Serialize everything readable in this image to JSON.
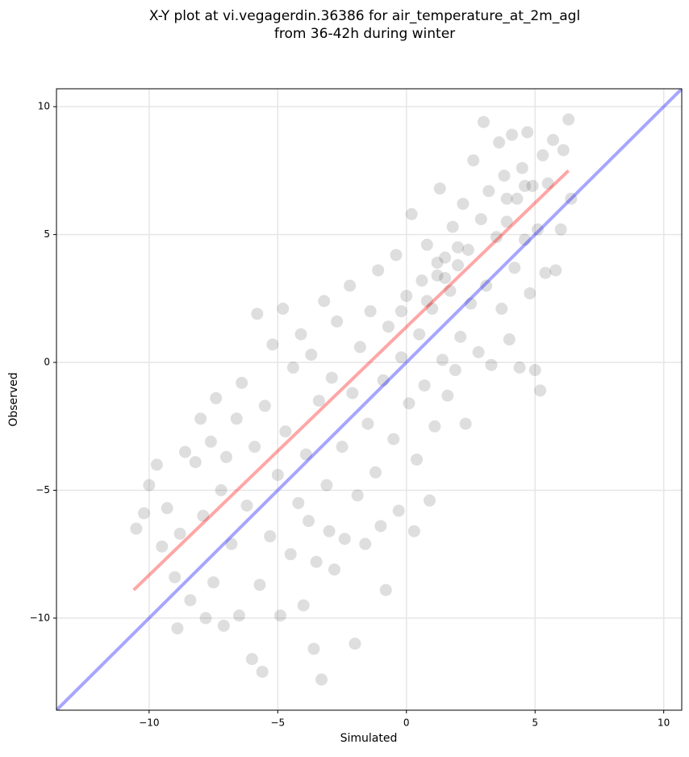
{
  "chart_data": {
    "type": "scatter",
    "title_lines": [
      "X-Y plot at vi.vegagerdin.36386 for air_temperature_at_2m_agl",
      "from 36-42h during winter"
    ],
    "xlabel": "Simulated",
    "ylabel": "Observed",
    "xlim": [
      -13.6,
      10.7
    ],
    "ylim": [
      -13.6,
      10.7
    ],
    "xticks": [
      {
        "value": -10,
        "label": "−10"
      },
      {
        "value": -5,
        "label": "−5"
      },
      0,
      5,
      10
    ],
    "yticks": [
      {
        "value": -10,
        "label": "−10"
      },
      {
        "value": -5,
        "label": "−5"
      },
      0,
      5,
      10
    ],
    "grid": true,
    "series": [
      {
        "color": "#000000",
        "alpha": 0.13,
        "x": [
          -10.5,
          -10.2,
          -10,
          -9.7,
          -9.5,
          -9.3,
          -9,
          -8.9,
          -8.8,
          -8.6,
          -8.4,
          -8.2,
          -8,
          -7.9,
          -7.8,
          -7.6,
          -7.5,
          -7.4,
          -7.2,
          -7.1,
          -7,
          -6.8,
          -6.6,
          -6.5,
          -6.4,
          -6.2,
          -6,
          -5.9,
          -5.8,
          -5.7,
          -5.6,
          -5.5,
          -5.3,
          -5.2,
          -5,
          -4.9,
          -4.8,
          -4.7,
          -4.5,
          -4.4,
          -4.2,
          -4.1,
          -4,
          -3.9,
          -3.8,
          -3.7,
          -3.6,
          -3.5,
          -3.4,
          -3.3,
          -3.2,
          -3.1,
          -3,
          -2.9,
          -2.8,
          -2.7,
          -2.5,
          -2.4,
          -2.2,
          -2.1,
          -2,
          -1.9,
          -1.8,
          -1.6,
          -1.5,
          -1.4,
          -1.2,
          -1.1,
          -1,
          -0.9,
          -0.8,
          -0.7,
          -0.5,
          -0.4,
          -0.3,
          -0.2,
          0,
          0.1,
          0.2,
          0.3,
          0.4,
          0.5,
          0.6,
          0.7,
          0.8,
          0.9,
          1,
          1.1,
          1.2,
          1.3,
          1.4,
          1.5,
          1.6,
          1.7,
          1.8,
          1.9,
          2,
          2.1,
          2.2,
          2.3,
          2.4,
          2.5,
          2.6,
          2.8,
          2.9,
          3,
          3.1,
          3.2,
          3.3,
          3.5,
          3.6,
          3.7,
          3.8,
          3.9,
          4,
          4.1,
          4.2,
          4.3,
          4.4,
          4.5,
          4.6,
          4.7,
          4.8,
          4.9,
          5,
          5.1,
          5.3,
          5.4,
          5.5,
          5.7,
          5.8,
          6,
          6.1,
          6.3,
          6.4,
          5.2,
          1.2,
          1.5,
          2.0,
          0.8,
          -0.2,
          4.6,
          3.9
        ],
        "y": [
          -6.5,
          -5.9,
          -4.8,
          -4,
          -7.2,
          -5.7,
          -8.4,
          -10.4,
          -6.7,
          -3.5,
          -9.3,
          -3.9,
          -2.2,
          -6,
          -10,
          -3.1,
          -8.6,
          -1.4,
          -5,
          -10.3,
          -3.7,
          -7.1,
          -2.2,
          -9.9,
          -0.8,
          -5.6,
          -11.6,
          -3.3,
          1.9,
          -8.7,
          -12.1,
          -1.7,
          -6.8,
          0.7,
          -4.4,
          -9.9,
          2.1,
          -2.7,
          -7.5,
          -0.2,
          -5.5,
          1.1,
          -9.5,
          -3.6,
          -6.2,
          0.3,
          -11.2,
          -7.8,
          -1.5,
          -12.4,
          2.4,
          -4.8,
          -6.6,
          -0.6,
          -8.1,
          1.6,
          -3.3,
          -6.9,
          3,
          -1.2,
          -11,
          -5.2,
          0.6,
          -7.1,
          -2.4,
          2,
          -4.3,
          3.6,
          -6.4,
          -0.7,
          -8.9,
          1.4,
          -3,
          4.2,
          -5.8,
          0.2,
          2.6,
          -1.6,
          5.8,
          -6.6,
          -3.8,
          1.1,
          3.2,
          -0.9,
          4.6,
          -5.4,
          2.1,
          -2.5,
          3.4,
          6.8,
          0.1,
          4.1,
          -1.3,
          2.8,
          5.3,
          -0.3,
          3.8,
          1,
          6.2,
          -2.4,
          4.4,
          2.3,
          7.9,
          0.4,
          5.6,
          9.4,
          3,
          6.7,
          -0.1,
          4.9,
          8.6,
          2.1,
          7.3,
          5.5,
          0.9,
          8.9,
          3.7,
          6.4,
          -0.2,
          7.6,
          4.8,
          9,
          2.7,
          6.9,
          -0.3,
          5.2,
          8.1,
          3.5,
          7,
          8.7,
          3.6,
          5.2,
          8.3,
          9.5,
          6.4,
          -1.1,
          3.9,
          3.3,
          4.5,
          2.4,
          2.0,
          6.9,
          6.4
        ]
      }
    ],
    "lines": [
      {
        "color": "#0000ff",
        "alpha": 0.35,
        "x": [
          -13.6,
          10.7
        ],
        "y": [
          -13.6,
          10.7
        ]
      },
      {
        "color": "#ff0000",
        "alpha": 0.35,
        "x": [
          -10.6,
          6.3
        ],
        "y": [
          -8.9,
          7.5
        ]
      }
    ]
  }
}
